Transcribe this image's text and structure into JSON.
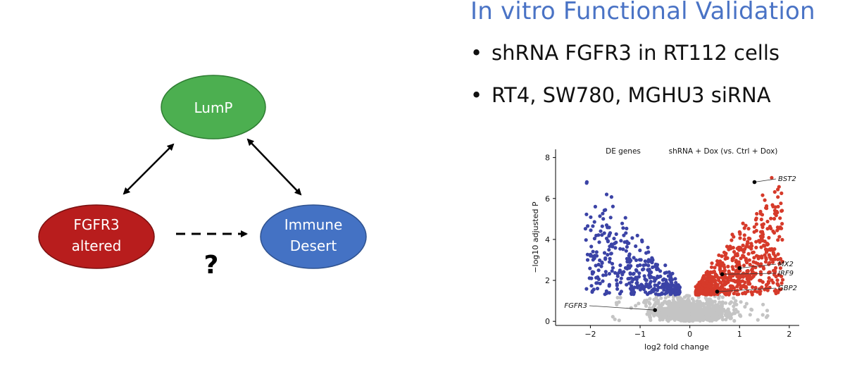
{
  "slide": {
    "title": "In vitro Functional Validation",
    "bullets": [
      "shRNA FGFR3 in RT112 cells",
      "RT4, SW780, MGHU3 siRNA"
    ]
  },
  "diagram": {
    "nodes": {
      "lump": {
        "label": "LumP",
        "color": "#4caf50"
      },
      "fgfr3": {
        "label_line1": "FGFR3",
        "label_line2": "altered",
        "color": "#b81d1d"
      },
      "immune": {
        "label_line1": "Immune",
        "label_line2": "Desert",
        "color": "#4472c4"
      }
    },
    "question_mark": "?"
  },
  "chart_data": {
    "type": "scatter",
    "title": "DE genes",
    "subtitle": "shRNA + Dox (vs. Ctrl + Dox)",
    "xlabel": "log2 fold change",
    "ylabel": "−log10 adjusted P",
    "xlim": [
      -2.7,
      2.2
    ],
    "ylim": [
      -0.2,
      8.4
    ],
    "x_ticks": [
      "−2",
      "−1",
      "0",
      "1",
      "2"
    ],
    "y_ticks": [
      "0",
      "2",
      "4",
      "6",
      "8"
    ],
    "colors": {
      "up": "#d63a2a",
      "down": "#3b43a6",
      "ns": "#c4c4c4"
    },
    "labeled_genes": [
      {
        "gene": "BST2",
        "x": 1.3,
        "y": 6.8
      },
      {
        "gene": "MX2",
        "x": 1.0,
        "y": 2.6
      },
      {
        "gene": "IRF9",
        "x": 0.65,
        "y": 2.3
      },
      {
        "gene": "GBP2",
        "x": 0.55,
        "y": 1.45
      },
      {
        "gene": "FGFR3",
        "x": -0.7,
        "y": 0.55
      }
    ]
  }
}
